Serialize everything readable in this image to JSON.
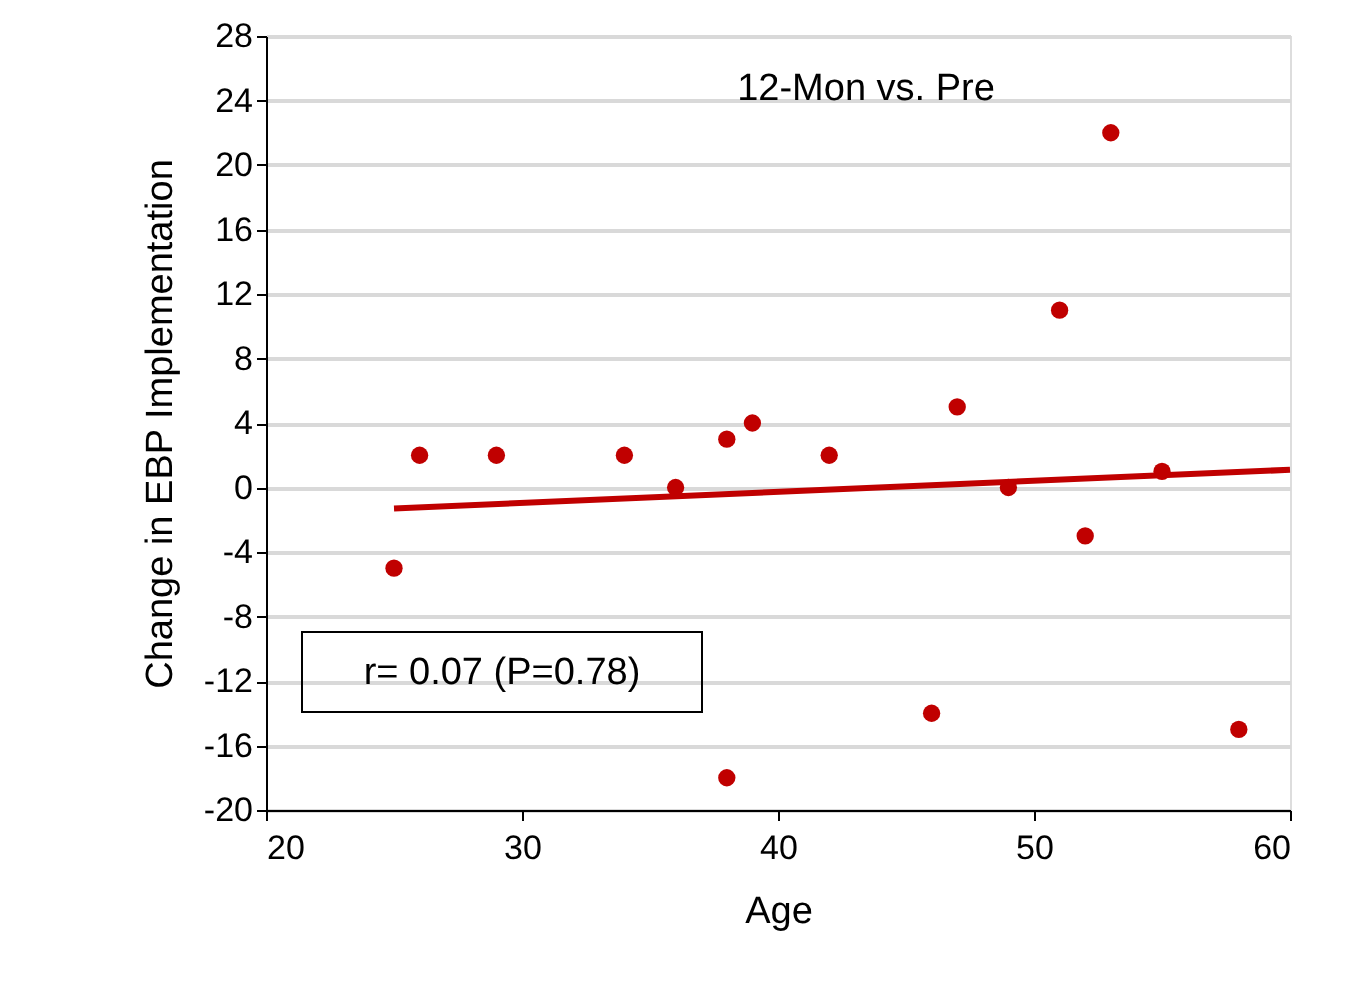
{
  "chart_data": {
    "type": "scatter",
    "title": "12-Mon vs. Pre",
    "xlabel": "Age",
    "ylabel": "Change in EBP Implementation",
    "annotations": [
      "r= 0.07 (P=0.78)"
    ],
    "xlim": [
      20,
      60
    ],
    "xticks": [
      20,
      30,
      40,
      50,
      60
    ],
    "ylim": [
      -20,
      28
    ],
    "yticks": [
      -20,
      -16,
      -12,
      -8,
      -4,
      0,
      4,
      8,
      12,
      16,
      20,
      24,
      28
    ],
    "grid": "y",
    "marker": "circle",
    "series": [
      {
        "color": "#c00000",
        "x": [
          25,
          26,
          29,
          34,
          36,
          38,
          39,
          42,
          38,
          46,
          47,
          49,
          51,
          52,
          53,
          55,
          58
        ],
        "values": [
          -5,
          2,
          2,
          2,
          0,
          3,
          4,
          2,
          -18,
          -14,
          5,
          0,
          11,
          -3,
          22,
          1,
          -15
        ]
      },
      {
        "type": "line",
        "color": "#c00000",
        "x": [
          25,
          60
        ],
        "values": [
          -1.3,
          1.1
        ],
        "line_style": "solid",
        "marker": "none"
      }
    ]
  }
}
